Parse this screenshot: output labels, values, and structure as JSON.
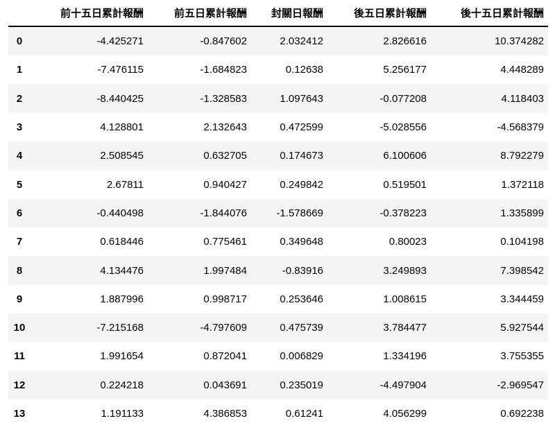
{
  "table": {
    "columns": [
      "",
      "前十五日累計報酬",
      "前五日累計報酬",
      "封關日報酬",
      "後五日累計報酬",
      "後十五日累計報酬"
    ],
    "rows": [
      {
        "index": "0",
        "values": [
          "-4.425271",
          "-0.847602",
          "2.032412",
          "2.826616",
          "10.374282"
        ]
      },
      {
        "index": "1",
        "values": [
          "-7.476115",
          "-1.684823",
          "0.12638",
          "5.256177",
          "4.448289"
        ]
      },
      {
        "index": "2",
        "values": [
          "-8.440425",
          "-1.328583",
          "1.097643",
          "-0.077208",
          "4.118403"
        ]
      },
      {
        "index": "3",
        "values": [
          "4.128801",
          "2.132643",
          "0.472599",
          "-5.028556",
          "-4.568379"
        ]
      },
      {
        "index": "4",
        "values": [
          "2.508545",
          "0.632705",
          "0.174673",
          "6.100606",
          "8.792279"
        ]
      },
      {
        "index": "5",
        "values": [
          "2.67811",
          "0.940427",
          "0.249842",
          "0.519501",
          "1.372118"
        ]
      },
      {
        "index": "6",
        "values": [
          "-0.440498",
          "-1.844076",
          "-1.578669",
          "-0.378223",
          "1.335899"
        ]
      },
      {
        "index": "7",
        "values": [
          "0.618446",
          "0.775461",
          "0.349648",
          "0.80023",
          "0.104198"
        ]
      },
      {
        "index": "8",
        "values": [
          "4.134476",
          "1.997484",
          "-0.83916",
          "3.249893",
          "7.398542"
        ]
      },
      {
        "index": "9",
        "values": [
          "1.887996",
          "0.998717",
          "0.253646",
          "1.008615",
          "3.344459"
        ]
      },
      {
        "index": "10",
        "values": [
          "-7.215168",
          "-4.797609",
          "0.475739",
          "3.784477",
          "5.927544"
        ]
      },
      {
        "index": "11",
        "values": [
          "1.991654",
          "0.872041",
          "0.006829",
          "1.334196",
          "3.755355"
        ]
      },
      {
        "index": "12",
        "values": [
          "0.224218",
          "0.043691",
          "0.235019",
          "-4.497904",
          "-2.969547"
        ]
      },
      {
        "index": "13",
        "values": [
          "1.191133",
          "4.386853",
          "0.61241",
          "4.056299",
          "0.692238"
        ]
      }
    ],
    "colors": {
      "stripe": "#f5f5f5",
      "header_rule": "#000000"
    }
  }
}
